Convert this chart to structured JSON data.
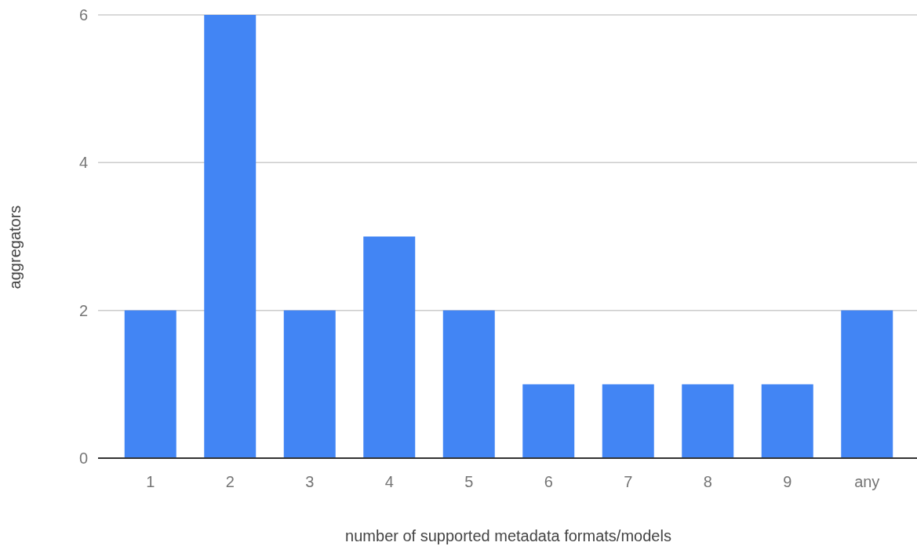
{
  "chart_data": {
    "type": "bar",
    "xlabel": "number of supported metadata formats/models",
    "ylabel": "aggregators",
    "categories": [
      "1",
      "2",
      "3",
      "4",
      "5",
      "6",
      "7",
      "8",
      "9",
      "any"
    ],
    "values": [
      2,
      6,
      2,
      3,
      2,
      1,
      1,
      1,
      1,
      2
    ],
    "color": "#4285f4",
    "ylim": [
      0,
      6
    ],
    "yticks": [
      0,
      2,
      4,
      6
    ],
    "grid": "y"
  }
}
